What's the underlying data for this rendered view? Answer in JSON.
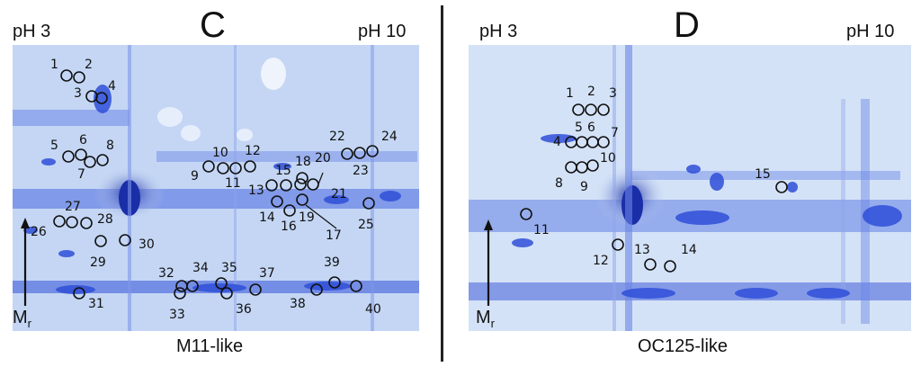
{
  "panel_c": {
    "letter": "C",
    "ph_left": "pH 3",
    "ph_right": "pH 10",
    "caption": "M11-like",
    "mr": "M",
    "mr_sub": "r",
    "spots": [
      "1",
      "2",
      "3",
      "4",
      "5",
      "6",
      "7",
      "8",
      "9",
      "10",
      "11",
      "12",
      "13",
      "14",
      "15",
      "16",
      "17",
      "18",
      "19",
      "20",
      "21",
      "22",
      "23",
      "24",
      "25",
      "26",
      "27",
      "28",
      "29",
      "30",
      "31",
      "32",
      "33",
      "34",
      "35",
      "36",
      "37",
      "38",
      "39",
      "40"
    ]
  },
  "panel_d": {
    "letter": "D",
    "ph_left": "pH 3",
    "ph_right": "pH 10",
    "caption": "OC125-like",
    "mr": "M",
    "mr_sub": "r",
    "spots": [
      "1",
      "2",
      "3",
      "4",
      "5",
      "6",
      "7",
      "8",
      "9",
      "10",
      "11",
      "12",
      "13",
      "14",
      "15"
    ]
  },
  "colors": {
    "gel_bg": "#cbdcf5",
    "stain": "#2f4fd8",
    "dark_stain": "#1a2ea8",
    "circle": "#111111"
  }
}
